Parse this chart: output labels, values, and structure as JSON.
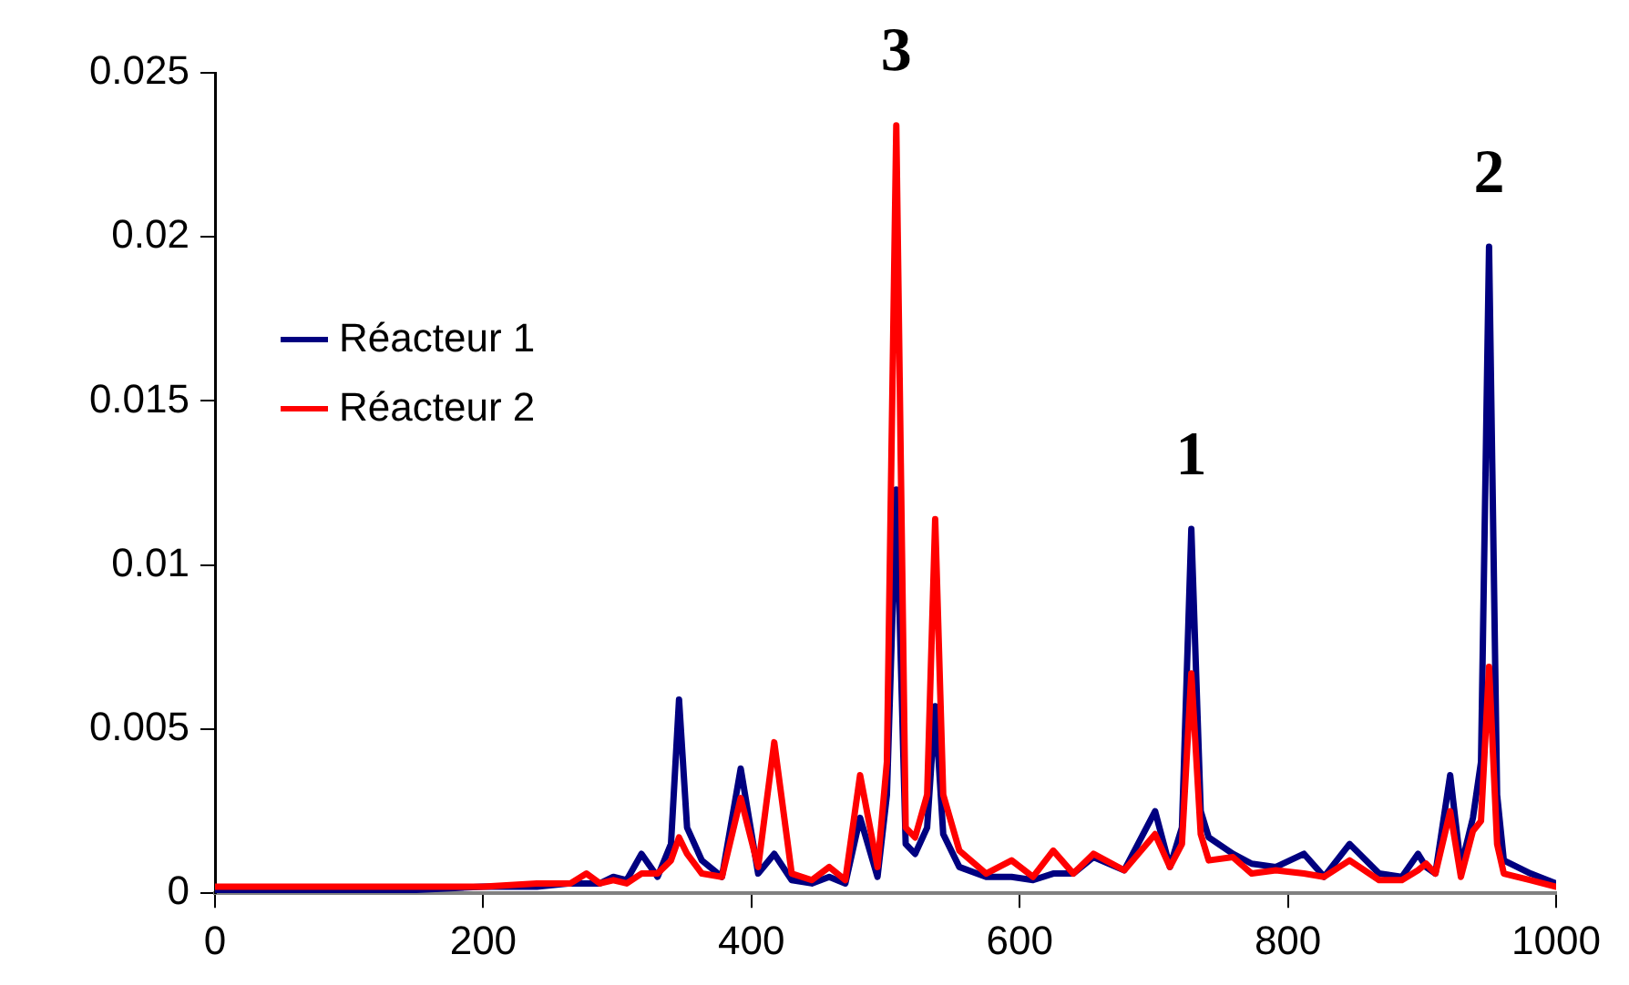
{
  "chart_data": {
    "type": "line",
    "x": [
      0,
      50,
      100,
      150,
      200,
      240,
      265,
      277,
      287,
      297,
      307,
      318,
      330,
      340,
      346,
      352,
      363,
      378,
      392,
      405,
      417,
      430,
      445,
      458,
      470,
      481,
      494,
      501,
      508,
      515,
      522,
      531,
      537,
      543,
      555,
      575,
      594,
      610,
      625,
      640,
      655,
      678,
      701,
      712,
      721,
      728,
      735,
      741,
      759,
      773,
      791,
      812,
      827,
      846,
      868,
      885,
      897,
      903,
      910,
      921,
      929,
      938,
      944,
      950,
      956,
      961,
      981,
      1000
    ],
    "series": [
      {
        "name": "Réacteur 1",
        "color": "#000080",
        "values": [
          0.0001,
          0.0001,
          0.0001,
          0.0001,
          0.0002,
          0.0002,
          0.0003,
          0.0003,
          0.0003,
          0.0005,
          0.0004,
          0.0012,
          0.0005,
          0.0015,
          0.0059,
          0.002,
          0.001,
          0.0005,
          0.0038,
          0.0006,
          0.0012,
          0.0004,
          0.0003,
          0.0005,
          0.0003,
          0.0023,
          0.0005,
          0.003,
          0.0123,
          0.0015,
          0.0012,
          0.002,
          0.0057,
          0.0018,
          0.0008,
          0.0005,
          0.0005,
          0.0004,
          0.0006,
          0.0006,
          0.0011,
          0.0007,
          0.0025,
          0.0008,
          0.002,
          0.0111,
          0.0025,
          0.0017,
          0.0012,
          0.0009,
          0.0008,
          0.0012,
          0.0005,
          0.0015,
          0.0006,
          0.0005,
          0.0012,
          0.0008,
          0.0006,
          0.0036,
          0.0008,
          0.0023,
          0.004,
          0.0197,
          0.003,
          0.001,
          0.0006,
          0.0003
        ]
      },
      {
        "name": "Réacteur 2",
        "color": "#ff0000",
        "values": [
          0.0002,
          0.0002,
          0.0002,
          0.0002,
          0.0002,
          0.0003,
          0.0003,
          0.0006,
          0.0003,
          0.0004,
          0.0003,
          0.0006,
          0.0006,
          0.001,
          0.0017,
          0.0012,
          0.0006,
          0.0005,
          0.0029,
          0.0008,
          0.0046,
          0.0006,
          0.0004,
          0.0008,
          0.0004,
          0.0036,
          0.0008,
          0.004,
          0.0234,
          0.002,
          0.0017,
          0.003,
          0.0114,
          0.003,
          0.0013,
          0.0006,
          0.001,
          0.0005,
          0.0013,
          0.0006,
          0.0012,
          0.0007,
          0.0018,
          0.0008,
          0.0015,
          0.0067,
          0.0018,
          0.001,
          0.0011,
          0.0006,
          0.0007,
          0.0006,
          0.0005,
          0.001,
          0.0004,
          0.0004,
          0.0007,
          0.0009,
          0.0006,
          0.0025,
          0.0005,
          0.0019,
          0.0022,
          0.0069,
          0.0015,
          0.0006,
          0.0004,
          0.0002
        ]
      }
    ],
    "xlim": [
      0,
      1000
    ],
    "xticks": [
      0,
      200,
      400,
      600,
      800,
      1000
    ],
    "ylim": [
      0,
      0.025
    ],
    "yticks": [
      0,
      0.005,
      0.01,
      0.015,
      0.02,
      0.025
    ],
    "grid": false,
    "legend": "left",
    "marker": "none",
    "line_style": "solid",
    "annotations": [
      {
        "text": "3",
        "x": 508,
        "y": 0.0234
      },
      {
        "text": "1",
        "x": 728,
        "y": 0.0111
      },
      {
        "text": "2",
        "x": 950,
        "y": 0.0197
      }
    ]
  }
}
